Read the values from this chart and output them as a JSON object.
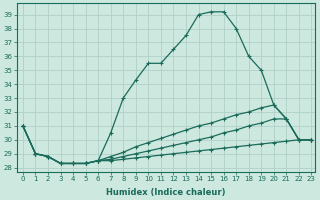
{
  "xlabel": "Humidex (Indice chaleur)",
  "ylabel": "",
  "xlim": [
    -0.5,
    23.3
  ],
  "ylim": [
    27.7,
    39.8
  ],
  "yticks": [
    28,
    29,
    30,
    31,
    32,
    33,
    34,
    35,
    36,
    37,
    38,
    39
  ],
  "xticks": [
    0,
    1,
    2,
    3,
    4,
    5,
    6,
    7,
    8,
    9,
    10,
    11,
    12,
    13,
    14,
    15,
    16,
    17,
    18,
    19,
    20,
    21,
    22,
    23
  ],
  "bg_color": "#cce8df",
  "line_color": "#1a6b5a",
  "grid_color": "#b0d0c8",
  "lines": [
    {
      "x": [
        0,
        1,
        2,
        3,
        4,
        5,
        6,
        7,
        8,
        9,
        10,
        11,
        12,
        13,
        14,
        15,
        16,
        17,
        18,
        19,
        20,
        21,
        22,
        23
      ],
      "y": [
        31.0,
        29.0,
        28.8,
        28.3,
        28.3,
        28.3,
        28.5,
        30.5,
        33.0,
        34.3,
        35.5,
        35.5,
        36.5,
        37.5,
        39.0,
        39.2,
        39.2,
        38.0,
        36.0,
        35.0,
        32.5,
        31.5,
        30.0,
        30.0
      ]
    },
    {
      "x": [
        0,
        1,
        2,
        3,
        4,
        5,
        6,
        7,
        8,
        9,
        10,
        11,
        12,
        13,
        14,
        15,
        16,
        17,
        18,
        19,
        20,
        21,
        22,
        23
      ],
      "y": [
        31.0,
        29.0,
        28.8,
        28.3,
        28.3,
        28.3,
        28.5,
        28.8,
        29.1,
        29.5,
        29.8,
        30.1,
        30.4,
        30.7,
        31.0,
        31.2,
        31.5,
        31.8,
        32.0,
        32.3,
        32.5,
        31.5,
        30.0,
        30.0
      ]
    },
    {
      "x": [
        0,
        1,
        2,
        3,
        4,
        5,
        6,
        7,
        8,
        9,
        10,
        11,
        12,
        13,
        14,
        15,
        16,
        17,
        18,
        19,
        20,
        21,
        22,
        23
      ],
      "y": [
        31.0,
        29.0,
        28.8,
        28.3,
        28.3,
        28.3,
        28.5,
        28.6,
        28.8,
        29.0,
        29.2,
        29.4,
        29.6,
        29.8,
        30.0,
        30.2,
        30.5,
        30.7,
        31.0,
        31.2,
        31.5,
        31.5,
        30.0,
        30.0
      ]
    },
    {
      "x": [
        0,
        1,
        2,
        3,
        4,
        5,
        6,
        7,
        8,
        9,
        10,
        11,
        12,
        13,
        14,
        15,
        16,
        17,
        18,
        19,
        20,
        21,
        22,
        23
      ],
      "y": [
        31.0,
        29.0,
        28.8,
        28.3,
        28.3,
        28.3,
        28.5,
        28.5,
        28.6,
        28.7,
        28.8,
        28.9,
        29.0,
        29.1,
        29.2,
        29.3,
        29.4,
        29.5,
        29.6,
        29.7,
        29.8,
        29.9,
        30.0,
        30.0
      ]
    }
  ]
}
